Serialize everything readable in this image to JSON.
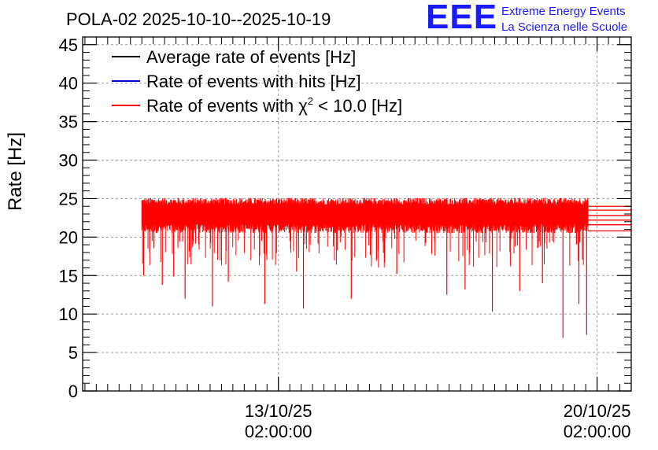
{
  "chart_data": {
    "type": "line",
    "title": "POLA-02 2025-10-10--2025-10-19",
    "xlabel": "",
    "ylabel": "Rate [Hz]",
    "ylim": [
      0,
      46
    ],
    "yticks": [
      0,
      5,
      10,
      15,
      20,
      25,
      30,
      35,
      40,
      45
    ],
    "xticks": [
      {
        "date": "13/10/25",
        "time": "02:00:00",
        "day": 3.0
      },
      {
        "date": "20/10/25",
        "time": "02:00:00",
        "day": 10.0
      }
    ],
    "xlim_days": [
      -1.3,
      10.75
    ],
    "grid": true,
    "legend_position": "top-left",
    "series": [
      {
        "name": "Average rate of events [Hz]",
        "color": "#000000",
        "typical": 22.7,
        "range": [
          20.5,
          24.8
        ]
      },
      {
        "name": "Rate of events with hits [Hz]",
        "color": "#0000cc",
        "typical": 22.7,
        "range": [
          20.5,
          24.8
        ]
      },
      {
        "name": "Rate of events with χ² < 10.0 [Hz]",
        "color": "#ff0000",
        "typical": 22.7,
        "range": [
          20.5,
          24.8
        ],
        "notable_dips": [
          {
            "day": 0.04,
            "value": 15.0
          },
          {
            "day": 0.45,
            "value": 13.8
          },
          {
            "day": 0.7,
            "value": 14.9
          },
          {
            "day": 0.95,
            "value": 12.0
          },
          {
            "day": 1.55,
            "value": 11.0
          },
          {
            "day": 1.9,
            "value": 14.2
          },
          {
            "day": 2.7,
            "value": 11.3
          },
          {
            "day": 3.4,
            "value": 15.5
          },
          {
            "day": 3.55,
            "value": 10.7
          },
          {
            "day": 4.6,
            "value": 12.0
          },
          {
            "day": 5.6,
            "value": 15.2
          },
          {
            "day": 6.7,
            "value": 12.5
          },
          {
            "day": 7.1,
            "value": 13.2
          },
          {
            "day": 7.7,
            "value": 10.3
          },
          {
            "day": 8.3,
            "value": 13.0
          },
          {
            "day": 8.8,
            "value": 14.0
          },
          {
            "day": 9.25,
            "value": 6.9
          },
          {
            "day": 9.6,
            "value": 11.3
          },
          {
            "day": 9.77,
            "value": 7.3
          }
        ]
      }
    ],
    "legend_labels": {
      "avg": "Average rate of events [Hz]",
      "hits": "Rate of events with hits [Hz]",
      "chi_prefix": "Rate of events with ",
      "chi_symbol": "χ",
      "chi_sup": "2",
      "chi_suffix": " < 10.0 [Hz]"
    }
  },
  "logo": {
    "mark": "EEE",
    "line1": "Extreme Energy Events",
    "line2": "La Scienza nelle Scuole",
    "color": "#1a1aff"
  }
}
